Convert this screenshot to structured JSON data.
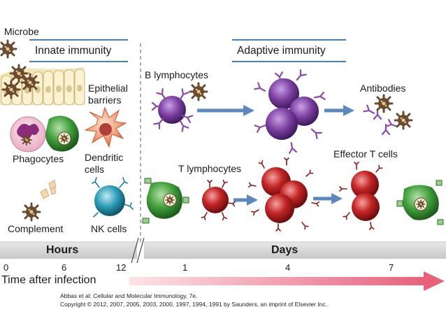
{
  "figure": {
    "microbe_label": "Microbe",
    "innate_header": "Innate immunity",
    "adaptive_header": "Adaptive immunity",
    "innate": {
      "epithelial_label_line1": "Epithelial",
      "epithelial_label_line2": "barriers",
      "phagocytes_label": "Phagocytes",
      "dendritic_label_line1": "Dendritic",
      "dendritic_label_line2": "cells",
      "complement_label": "Complement",
      "nk_label": "NK cells"
    },
    "adaptive": {
      "b_label": "B lymphocytes",
      "antibodies_label": "Antibodies",
      "t_label": "T lymphocytes",
      "effector_label": "Effector T cells"
    },
    "timeline": {
      "hours_label": "Hours",
      "days_label": "Days",
      "ticks": [
        "0",
        "6",
        "12",
        "1",
        "4",
        "7"
      ],
      "axis_label": "Time after infection"
    },
    "credit_line1": "Abbas et al: Cellular and Molecular Immunology, 7e.",
    "credit_line2": "Copyright © 2012, 2007, 2005, 2003, 2000, 1997, 1994, 1991 by Saunders, an imprint of Elsevier Inc."
  },
  "colors": {
    "header_rule": "#4a7fb5",
    "arrow_blue": "#5b88c0",
    "b_cell": "#7b3fa0",
    "t_cell": "#c42626",
    "phagocyte_green": "#3f9e3a",
    "nk_teal": "#2a9bb5",
    "dendritic_orange": "#e8825a",
    "timeline_band": "#dcdcdc",
    "time_arrow": "#e87a8a"
  }
}
